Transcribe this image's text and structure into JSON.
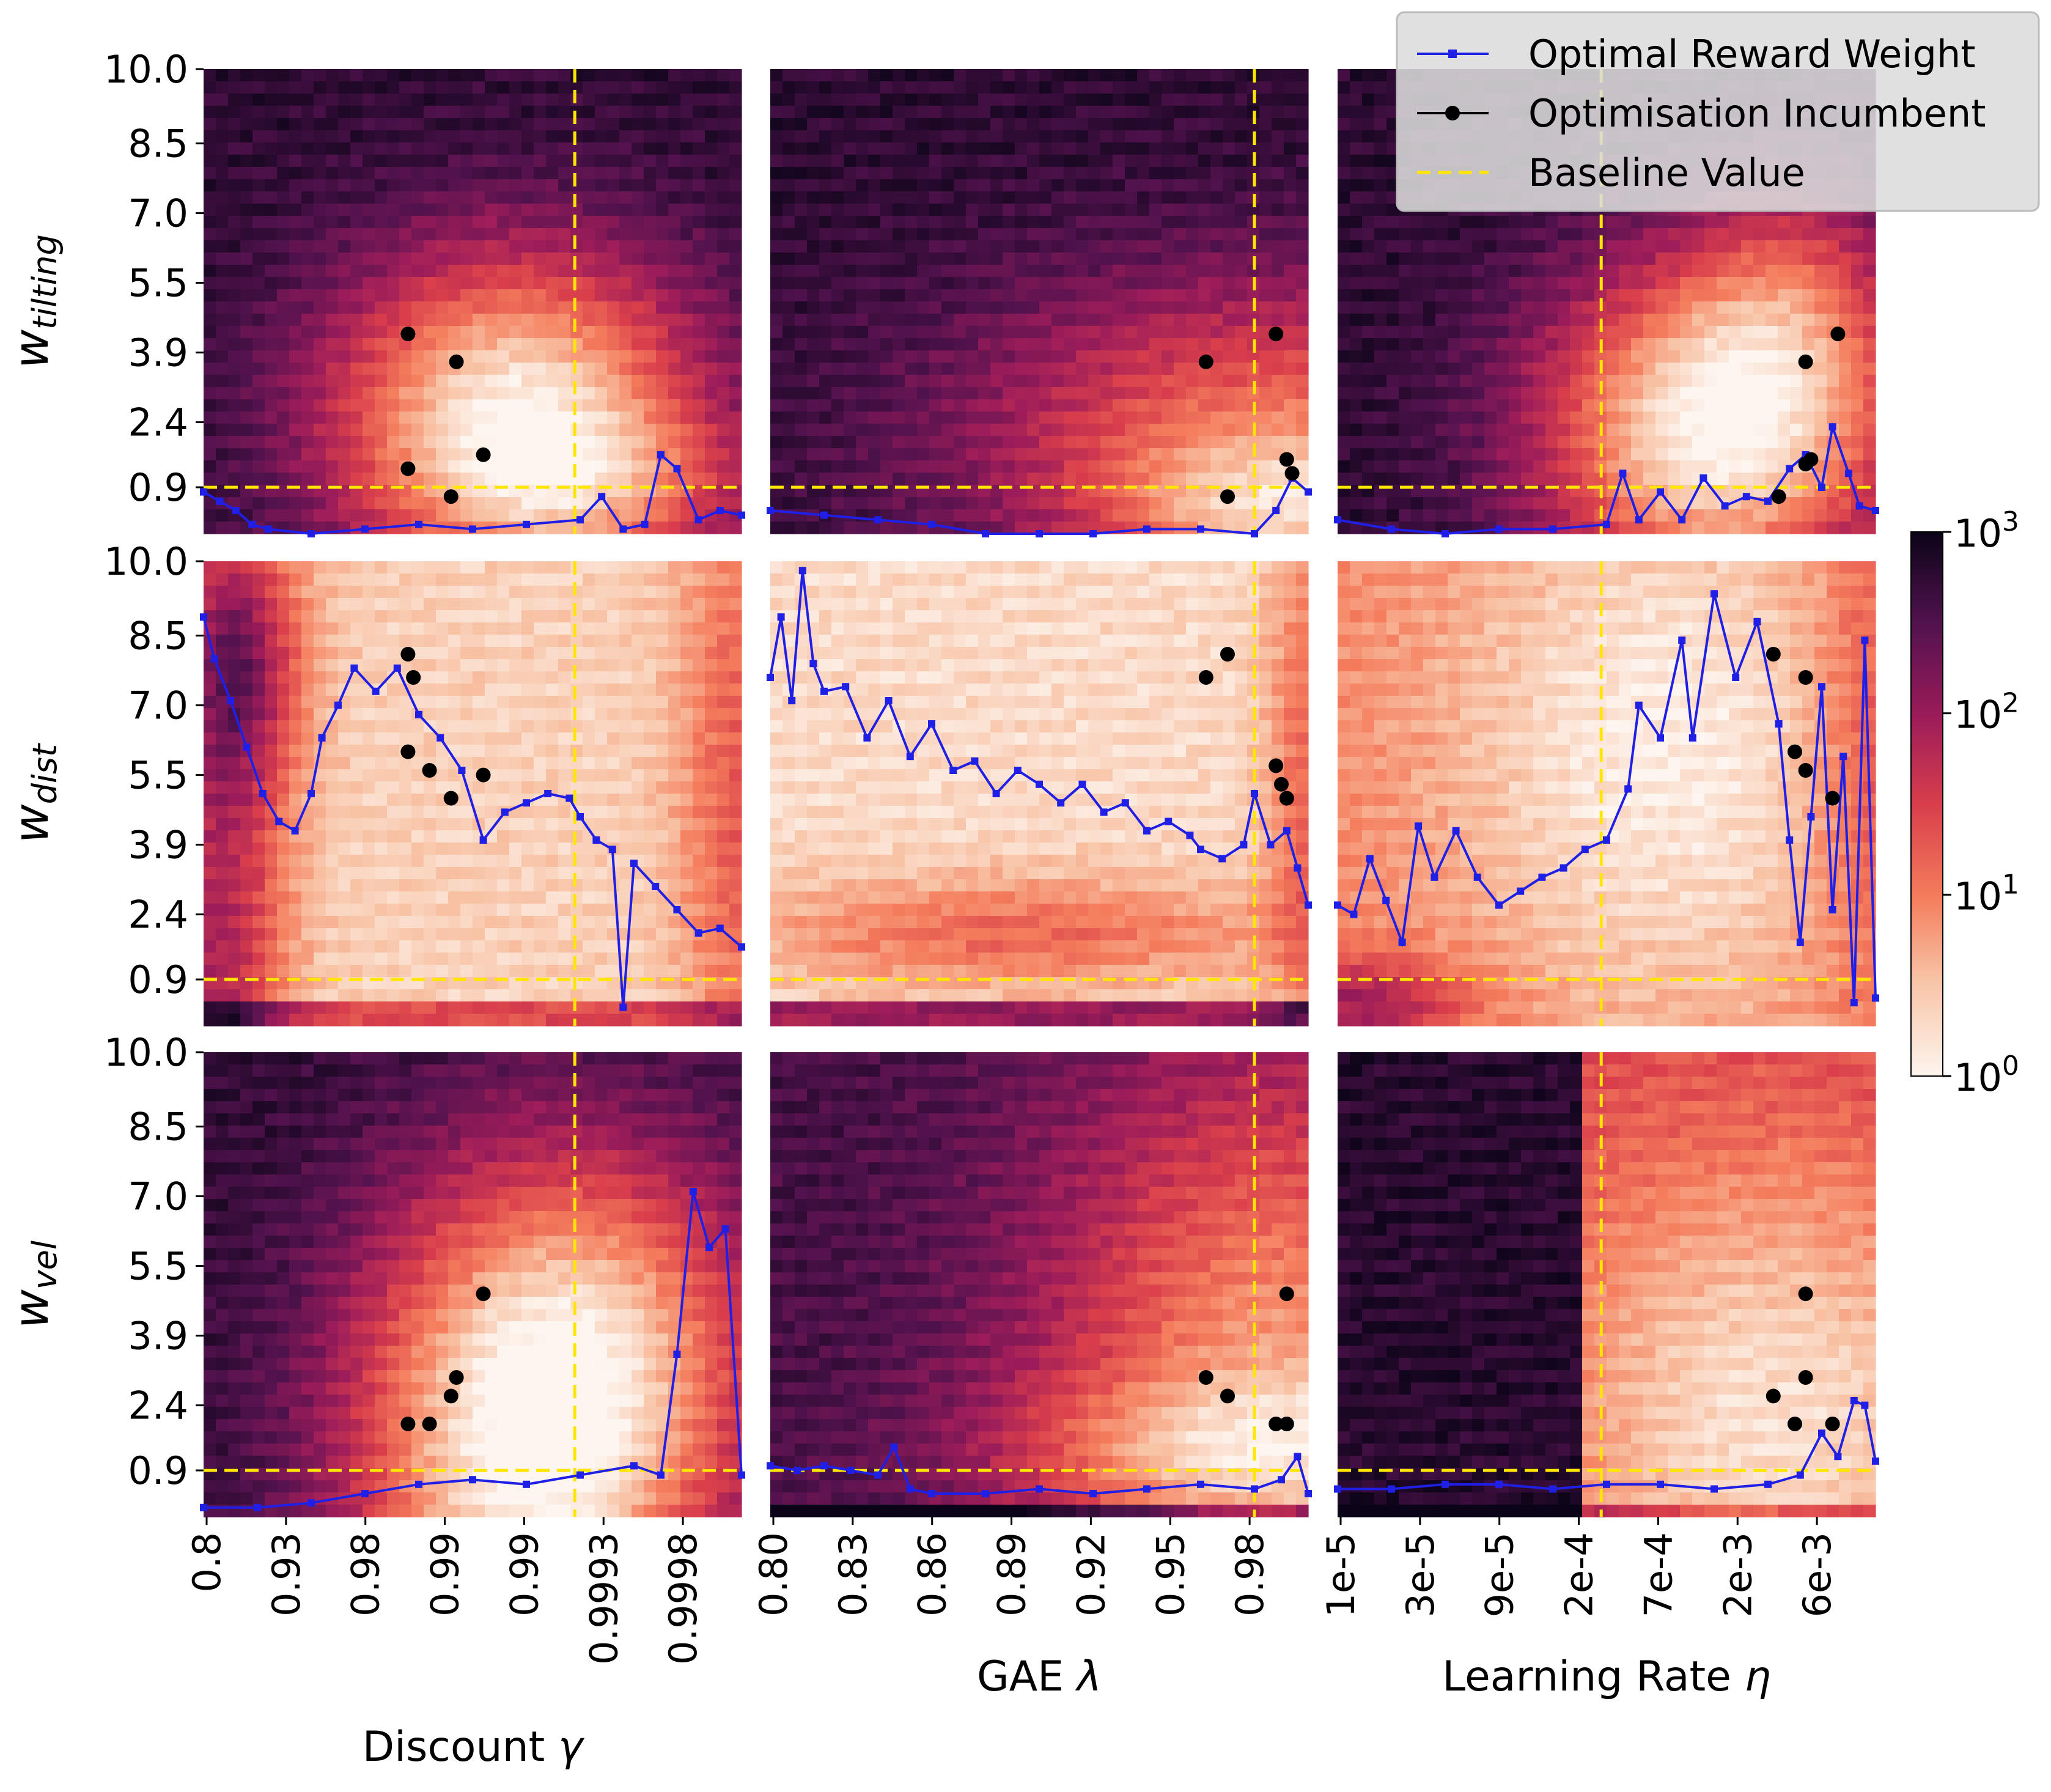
{
  "chart_data": {
    "type": "heatmap",
    "legend": {
      "placement": "top-right",
      "entries": [
        {
          "key": "opt",
          "label": "Optimal Reward Weight",
          "color": "#1f1fe6",
          "style": "line-square-marker"
        },
        {
          "key": "inc",
          "label": "Optimisation Incumbent",
          "color": "#000000",
          "style": "line-circle-marker"
        },
        {
          "key": "base",
          "label": "Baseline Value",
          "color": "#ffe600",
          "style": "dashed"
        }
      ]
    },
    "colorbar": {
      "scale": "log",
      "range": [
        1,
        1000
      ],
      "ticks": [
        {
          "value": 1,
          "base": "10",
          "exp": "0"
        },
        {
          "value": 10,
          "base": "10",
          "exp": "1"
        },
        {
          "value": 100,
          "base": "10",
          "exp": "2"
        },
        {
          "value": 1000,
          "base": "10",
          "exp": "3"
        }
      ]
    },
    "y_ticks": [
      "10.0",
      "8.5",
      "7.0",
      "5.5",
      "3.9",
      "2.4",
      "0.9"
    ],
    "y_range": [
      0,
      10
    ],
    "rows": [
      {
        "ylabel_base": "w",
        "ylabel_sub": "tilting",
        "baseline": 1.0
      },
      {
        "ylabel_base": "w",
        "ylabel_sub": "dist",
        "baseline": 1.0
      },
      {
        "ylabel_base": "w",
        "ylabel_sub": "vel",
        "baseline": 1.0
      }
    ],
    "columns": [
      {
        "xlabel_text": "Discount ",
        "xlabel_sym": "γ",
        "x_ticks": [
          "0.8",
          "0.93",
          "0.98",
          "0.99",
          "0.99",
          "0.9993",
          "0.9998"
        ],
        "baseline_position": 0.69
      },
      {
        "xlabel_text": "GAE ",
        "xlabel_sym": "λ",
        "x_ticks": [
          "0.80",
          "0.83",
          "0.86",
          "0.89",
          "0.92",
          "0.95",
          "0.98"
        ],
        "baseline_position": 0.9
      },
      {
        "xlabel_text": "Learning Rate ",
        "xlabel_sym": "η",
        "x_ticks": [
          "1e-5",
          "3e-5",
          "9e-5",
          "2e-4",
          "7e-4",
          "2e-3",
          "6e-3"
        ],
        "baseline_position": 0.49
      }
    ],
    "panels": [
      {
        "row": 0,
        "col": 0,
        "optimal": [
          [
            0.0,
            0.9
          ],
          [
            0.03,
            0.7
          ],
          [
            0.06,
            0.5
          ],
          [
            0.09,
            0.2
          ],
          [
            0.12,
            0.1
          ],
          [
            0.2,
            0.0
          ],
          [
            0.3,
            0.1
          ],
          [
            0.4,
            0.2
          ],
          [
            0.5,
            0.1
          ],
          [
            0.6,
            0.2
          ],
          [
            0.7,
            0.3
          ],
          [
            0.74,
            0.8
          ],
          [
            0.78,
            0.1
          ],
          [
            0.82,
            0.2
          ],
          [
            0.85,
            1.7
          ],
          [
            0.88,
            1.4
          ],
          [
            0.92,
            0.3
          ],
          [
            0.96,
            0.5
          ],
          [
            1.0,
            0.4
          ]
        ],
        "incumbents": [
          [
            0.38,
            4.3
          ],
          [
            0.47,
            3.7
          ],
          [
            0.38,
            1.4
          ],
          [
            0.52,
            1.7
          ],
          [
            0.46,
            0.8
          ]
        ]
      },
      {
        "row": 0,
        "col": 1,
        "optimal": [
          [
            0.0,
            0.5
          ],
          [
            0.1,
            0.4
          ],
          [
            0.2,
            0.3
          ],
          [
            0.3,
            0.2
          ],
          [
            0.4,
            0.0
          ],
          [
            0.5,
            0.0
          ],
          [
            0.6,
            0.0
          ],
          [
            0.7,
            0.1
          ],
          [
            0.8,
            0.1
          ],
          [
            0.9,
            0.0
          ],
          [
            0.94,
            0.5
          ],
          [
            0.97,
            1.2
          ],
          [
            1.0,
            0.9
          ]
        ],
        "incumbents": [
          [
            0.81,
            3.7
          ],
          [
            0.94,
            4.3
          ],
          [
            0.96,
            1.6
          ],
          [
            0.97,
            1.3
          ],
          [
            0.85,
            0.8
          ]
        ]
      },
      {
        "row": 0,
        "col": 2,
        "optimal": [
          [
            0.0,
            0.3
          ],
          [
            0.1,
            0.1
          ],
          [
            0.2,
            0.0
          ],
          [
            0.3,
            0.1
          ],
          [
            0.4,
            0.1
          ],
          [
            0.5,
            0.2
          ],
          [
            0.53,
            1.3
          ],
          [
            0.56,
            0.3
          ],
          [
            0.6,
            0.9
          ],
          [
            0.64,
            0.3
          ],
          [
            0.68,
            1.2
          ],
          [
            0.72,
            0.6
          ],
          [
            0.76,
            0.8
          ],
          [
            0.8,
            0.7
          ],
          [
            0.84,
            1.4
          ],
          [
            0.87,
            1.7
          ],
          [
            0.9,
            1.0
          ],
          [
            0.92,
            2.3
          ],
          [
            0.95,
            1.3
          ],
          [
            0.97,
            0.6
          ],
          [
            1.0,
            0.5
          ]
        ],
        "incumbents": [
          [
            0.82,
            0.8
          ],
          [
            0.87,
            1.5
          ],
          [
            0.88,
            1.6
          ],
          [
            0.87,
            3.7
          ],
          [
            0.93,
            4.3
          ]
        ]
      },
      {
        "row": 1,
        "col": 0,
        "optimal": [
          [
            0.0,
            8.8
          ],
          [
            0.02,
            7.9
          ],
          [
            0.05,
            7.0
          ],
          [
            0.08,
            6.0
          ],
          [
            0.11,
            5.0
          ],
          [
            0.14,
            4.4
          ],
          [
            0.17,
            4.2
          ],
          [
            0.2,
            5.0
          ],
          [
            0.22,
            6.2
          ],
          [
            0.25,
            6.9
          ],
          [
            0.28,
            7.7
          ],
          [
            0.32,
            7.2
          ],
          [
            0.36,
            7.7
          ],
          [
            0.4,
            6.7
          ],
          [
            0.44,
            6.2
          ],
          [
            0.48,
            5.5
          ],
          [
            0.52,
            4.0
          ],
          [
            0.56,
            4.6
          ],
          [
            0.6,
            4.8
          ],
          [
            0.64,
            5.0
          ],
          [
            0.68,
            4.9
          ],
          [
            0.7,
            4.5
          ],
          [
            0.73,
            4.0
          ],
          [
            0.76,
            3.8
          ],
          [
            0.78,
            0.4
          ],
          [
            0.8,
            3.5
          ],
          [
            0.84,
            3.0
          ],
          [
            0.88,
            2.5
          ],
          [
            0.92,
            2.0
          ],
          [
            0.96,
            2.1
          ],
          [
            1.0,
            1.7
          ]
        ],
        "incumbents": [
          [
            0.38,
            8.0
          ],
          [
            0.39,
            7.5
          ],
          [
            0.38,
            5.9
          ],
          [
            0.42,
            5.5
          ],
          [
            0.52,
            5.4
          ],
          [
            0.46,
            4.9
          ]
        ]
      },
      {
        "row": 1,
        "col": 1,
        "optimal": [
          [
            0.0,
            7.5
          ],
          [
            0.02,
            8.8
          ],
          [
            0.04,
            7.0
          ],
          [
            0.06,
            9.8
          ],
          [
            0.08,
            7.8
          ],
          [
            0.1,
            7.2
          ],
          [
            0.14,
            7.3
          ],
          [
            0.18,
            6.2
          ],
          [
            0.22,
            7.0
          ],
          [
            0.26,
            5.8
          ],
          [
            0.3,
            6.5
          ],
          [
            0.34,
            5.5
          ],
          [
            0.38,
            5.7
          ],
          [
            0.42,
            5.0
          ],
          [
            0.46,
            5.5
          ],
          [
            0.5,
            5.2
          ],
          [
            0.54,
            4.8
          ],
          [
            0.58,
            5.2
          ],
          [
            0.62,
            4.6
          ],
          [
            0.66,
            4.8
          ],
          [
            0.7,
            4.2
          ],
          [
            0.74,
            4.4
          ],
          [
            0.78,
            4.1
          ],
          [
            0.8,
            3.8
          ],
          [
            0.84,
            3.6
          ],
          [
            0.88,
            3.9
          ],
          [
            0.9,
            5.0
          ],
          [
            0.93,
            3.9
          ],
          [
            0.96,
            4.2
          ],
          [
            0.98,
            3.4
          ],
          [
            1.0,
            2.6
          ]
        ],
        "incumbents": [
          [
            0.81,
            7.5
          ],
          [
            0.85,
            8.0
          ],
          [
            0.94,
            5.6
          ],
          [
            0.95,
            5.2
          ],
          [
            0.96,
            4.9
          ]
        ]
      },
      {
        "row": 1,
        "col": 2,
        "optimal": [
          [
            0.0,
            2.6
          ],
          [
            0.03,
            2.4
          ],
          [
            0.06,
            3.6
          ],
          [
            0.09,
            2.7
          ],
          [
            0.12,
            1.8
          ],
          [
            0.15,
            4.3
          ],
          [
            0.18,
            3.2
          ],
          [
            0.22,
            4.2
          ],
          [
            0.26,
            3.2
          ],
          [
            0.3,
            2.6
          ],
          [
            0.34,
            2.9
          ],
          [
            0.38,
            3.2
          ],
          [
            0.42,
            3.4
          ],
          [
            0.46,
            3.8
          ],
          [
            0.5,
            4.0
          ],
          [
            0.54,
            5.1
          ],
          [
            0.56,
            6.9
          ],
          [
            0.6,
            6.2
          ],
          [
            0.64,
            8.3
          ],
          [
            0.66,
            6.2
          ],
          [
            0.7,
            9.3
          ],
          [
            0.74,
            7.5
          ],
          [
            0.78,
            8.7
          ],
          [
            0.82,
            6.5
          ],
          [
            0.84,
            4.0
          ],
          [
            0.86,
            1.8
          ],
          [
            0.88,
            4.5
          ],
          [
            0.9,
            7.3
          ],
          [
            0.92,
            2.5
          ],
          [
            0.94,
            5.8
          ],
          [
            0.96,
            0.5
          ],
          [
            0.98,
            8.3
          ],
          [
            1.0,
            0.6
          ]
        ],
        "incumbents": [
          [
            0.81,
            8.0
          ],
          [
            0.87,
            7.5
          ],
          [
            0.85,
            5.9
          ],
          [
            0.87,
            5.5
          ],
          [
            0.92,
            4.9
          ]
        ]
      },
      {
        "row": 2,
        "col": 0,
        "optimal": [
          [
            0.0,
            0.2
          ],
          [
            0.1,
            0.2
          ],
          [
            0.2,
            0.3
          ],
          [
            0.3,
            0.5
          ],
          [
            0.4,
            0.7
          ],
          [
            0.5,
            0.8
          ],
          [
            0.6,
            0.7
          ],
          [
            0.7,
            0.9
          ],
          [
            0.8,
            1.1
          ],
          [
            0.85,
            0.9
          ],
          [
            0.88,
            3.5
          ],
          [
            0.91,
            7.0
          ],
          [
            0.94,
            5.8
          ],
          [
            0.97,
            6.2
          ],
          [
            1.0,
            0.9
          ]
        ],
        "incumbents": [
          [
            0.38,
            2.0
          ],
          [
            0.42,
            2.0
          ],
          [
            0.46,
            2.6
          ],
          [
            0.47,
            3.0
          ],
          [
            0.52,
            4.8
          ]
        ]
      },
      {
        "row": 2,
        "col": 1,
        "optimal": [
          [
            0.0,
            1.1
          ],
          [
            0.05,
            1.0
          ],
          [
            0.1,
            1.1
          ],
          [
            0.15,
            1.0
          ],
          [
            0.2,
            0.9
          ],
          [
            0.23,
            1.5
          ],
          [
            0.26,
            0.6
          ],
          [
            0.3,
            0.5
          ],
          [
            0.4,
            0.5
          ],
          [
            0.5,
            0.6
          ],
          [
            0.6,
            0.5
          ],
          [
            0.7,
            0.6
          ],
          [
            0.8,
            0.7
          ],
          [
            0.9,
            0.6
          ],
          [
            0.95,
            0.8
          ],
          [
            0.98,
            1.3
          ],
          [
            1.0,
            0.5
          ]
        ],
        "incumbents": [
          [
            0.81,
            3.0
          ],
          [
            0.85,
            2.6
          ],
          [
            0.94,
            2.0
          ],
          [
            0.96,
            2.0
          ],
          [
            0.96,
            4.8
          ]
        ]
      },
      {
        "row": 2,
        "col": 2,
        "optimal": [
          [
            0.0,
            0.6
          ],
          [
            0.1,
            0.6
          ],
          [
            0.2,
            0.7
          ],
          [
            0.3,
            0.7
          ],
          [
            0.4,
            0.6
          ],
          [
            0.5,
            0.7
          ],
          [
            0.6,
            0.7
          ],
          [
            0.7,
            0.6
          ],
          [
            0.8,
            0.7
          ],
          [
            0.86,
            0.9
          ],
          [
            0.9,
            1.8
          ],
          [
            0.93,
            1.3
          ],
          [
            0.96,
            2.5
          ],
          [
            0.98,
            2.4
          ],
          [
            1.0,
            1.2
          ]
        ],
        "incumbents": [
          [
            0.81,
            2.6
          ],
          [
            0.85,
            2.0
          ],
          [
            0.87,
            3.0
          ],
          [
            0.87,
            4.8
          ],
          [
            0.92,
            2.0
          ]
        ]
      }
    ]
  }
}
